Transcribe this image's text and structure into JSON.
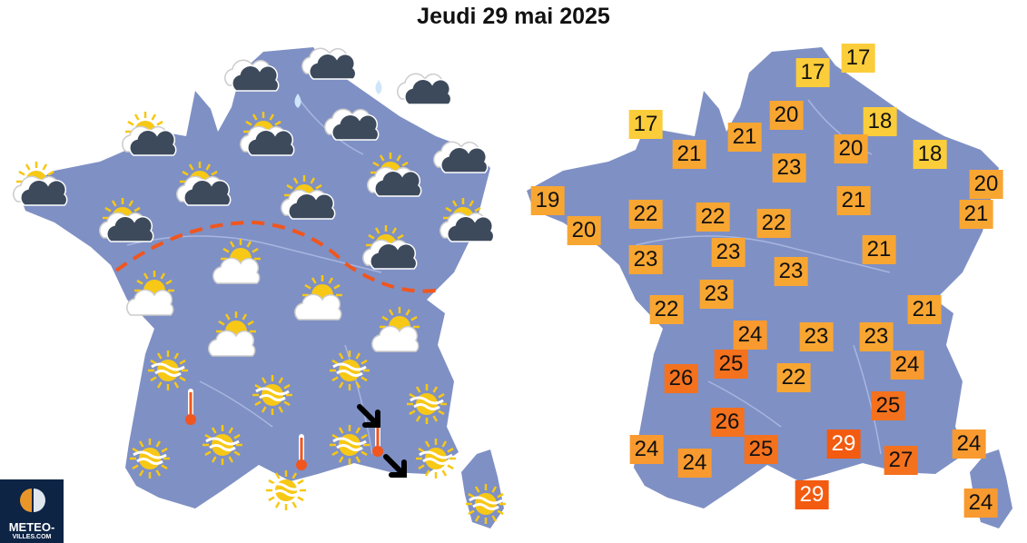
{
  "title": "Jeudi 29 mai 2025",
  "logo": {
    "line1": "METEO-",
    "line2": "VILLES.COM"
  },
  "colors": {
    "land": "#7f90c4",
    "river": "#a8b6e0",
    "front": "#f0561e",
    "t17": "#fbcd3a",
    "t19": "#f8a632",
    "t24": "#f89a2f",
    "t25": "#f4711e",
    "t29": "#f25b10"
  },
  "weather_icons": [
    "cloud",
    "cloud",
    "cloud",
    "cloud",
    "cloud",
    "sun-cloud",
    "sun-cloud",
    "sun-cloud",
    "sun-cloud",
    "sun-cloud",
    "sun-cloud",
    "sun-cloud",
    "sun-cloud",
    "sun-cloud",
    "sun-light-cloud",
    "sun-light-cloud",
    "sun-light-cloud",
    "sun-light-cloud",
    "sun-light-cloud",
    "sun-haze",
    "sun-haze",
    "sun-haze",
    "sun-haze",
    "sun-haze",
    "sun-haze",
    "sun-haze",
    "sun-haze",
    "sun-haze",
    "sun-haze",
    "thermometer-hot",
    "thermometer-hot",
    "thermometer-hot",
    "rain-drop",
    "rain-drop",
    "wind-arrow",
    "wind-arrow"
  ],
  "temperatures": [
    "17",
    "17",
    "17",
    "20",
    "18",
    "21",
    "21",
    "20",
    "18",
    "23",
    "20",
    "19",
    "22",
    "22",
    "22",
    "21",
    "21",
    "20",
    "23",
    "23",
    "21",
    "23",
    "23",
    "22",
    "21",
    "24",
    "23",
    "23",
    "26",
    "25",
    "22",
    "24",
    "25",
    "26",
    "24",
    "24",
    "25",
    "29",
    "27",
    "24",
    "29",
    "24"
  ]
}
